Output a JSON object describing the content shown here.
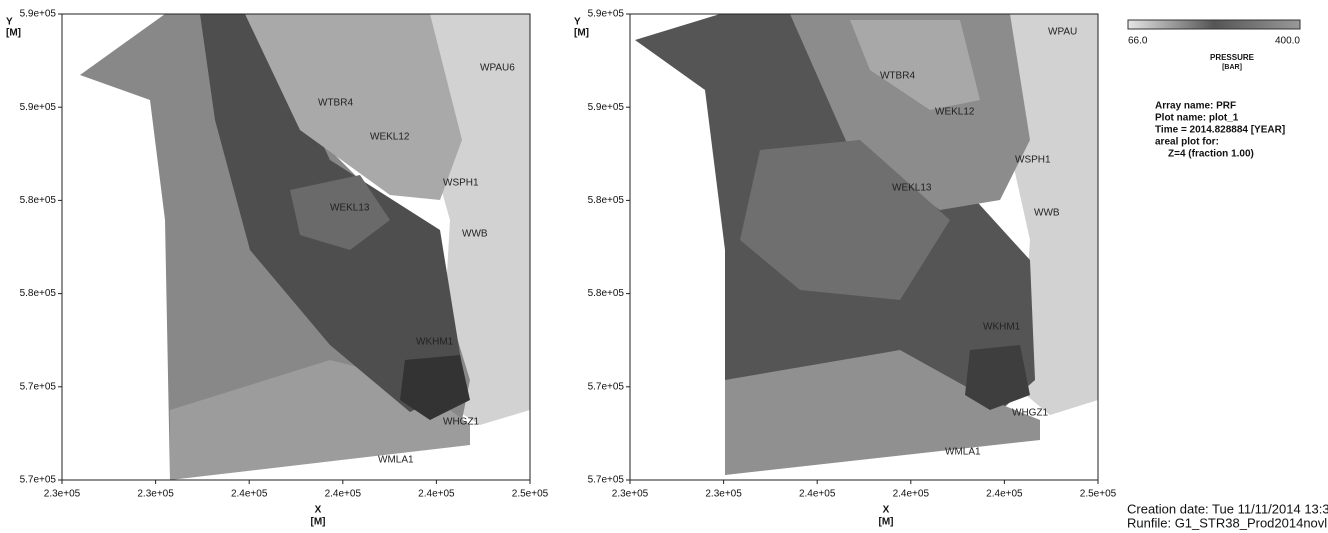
{
  "panels": [
    {
      "y_axis": {
        "label": "Y",
        "unit": "[M]",
        "ticks": [
          "5.9e+05",
          "5.9e+05",
          "5.8e+05",
          "5.8e+05",
          "5.7e+05",
          "5.7e+05"
        ]
      },
      "x_axis": {
        "label": "X",
        "unit": "[M]",
        "ticks": [
          "2.3e+05",
          "2.3e+05",
          "2.4e+05",
          "2.4e+05",
          "2.4e+05",
          "2.5e+05"
        ]
      },
      "wells": [
        "WPAU6",
        "WTBR4",
        "WEKL12",
        "WSPH1",
        "WEKL13",
        "WWB",
        "WKHM1",
        "WHGZ1",
        "WMLA1"
      ]
    },
    {
      "y_axis": {
        "label": "Y",
        "unit": "[M]",
        "ticks": [
          "5.9e+05",
          "5.9e+05",
          "5.8e+05",
          "5.8e+05",
          "5.7e+05",
          "5.7e+05"
        ]
      },
      "x_axis": {
        "label": "X",
        "unit": "[M]",
        "ticks": [
          "2.3e+05",
          "2.3e+05",
          "2.4e+05",
          "2.4e+05",
          "2.4e+05",
          "2.5e+05"
        ]
      },
      "wells": [
        "WPAU",
        "WTBR4",
        "WEKL12",
        "WSPH1",
        "WEKL13",
        "WWB",
        "WKHM1",
        "WHGZ1",
        "WMLA1"
      ]
    }
  ],
  "legend": {
    "min": "66.0",
    "max": "400.0",
    "title": "PRESSURE",
    "unit": "[BAR]"
  },
  "info": [
    "Array name: PRF",
    "Plot name: plot_1",
    "Time = 2014.828884 [YEAR]",
    "areal plot for:",
    "Z=4 (fraction 1.00)"
  ],
  "footer": [
    "Creation date: Tue 11/11/2014 13:3",
    "Runfile: G1_STR38_Prod2014novl"
  ]
}
